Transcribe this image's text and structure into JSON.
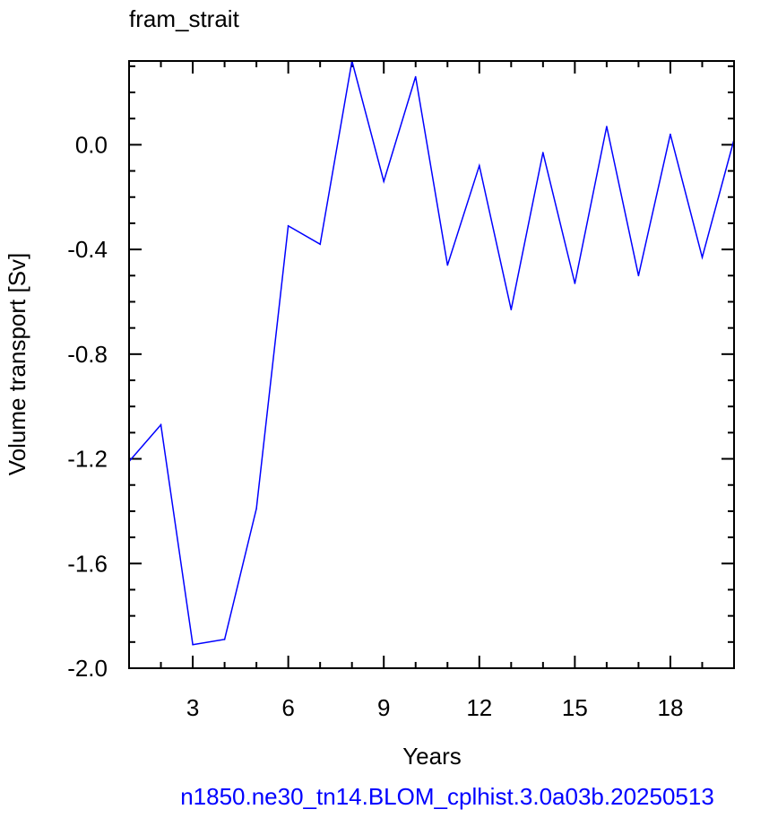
{
  "chart_data": {
    "type": "line",
    "title": "fram_strait",
    "xlabel": "Years",
    "ylabel": "Volume transport [Sv]",
    "caption": "n1850.ne30_tn14.BLOM_cplhist.3.0a03b.20250513",
    "xlim": [
      1,
      20
    ],
    "ylim": [
      -2.0,
      0.32
    ],
    "x_major_ticks": [
      3,
      6,
      9,
      12,
      15,
      18
    ],
    "x_tick_labels": [
      "3",
      "6",
      "9",
      "12",
      "15",
      "18"
    ],
    "x_minor_step": 1,
    "y_major_ticks": [
      -2.0,
      -1.6,
      -1.2,
      -0.8,
      -0.4,
      0.0
    ],
    "y_tick_labels": [
      "-2.0",
      "-1.6",
      "-1.2",
      "-0.8",
      "-0.4",
      "0.0"
    ],
    "y_minor_step": 0.1,
    "grid": false,
    "series": [
      {
        "color": "#0000ff",
        "x": [
          1,
          2,
          3,
          4,
          5,
          6,
          7,
          8,
          9,
          10,
          11,
          12,
          13,
          14,
          15,
          16,
          17,
          18,
          19,
          20
        ],
        "values": [
          -1.21,
          -1.07,
          -1.91,
          -1.89,
          -1.39,
          -0.31,
          -0.38,
          0.32,
          -0.14,
          0.26,
          -0.46,
          -0.08,
          -0.63,
          -0.03,
          -0.53,
          0.07,
          -0.5,
          0.04,
          -0.43,
          0.02
        ]
      }
    ]
  }
}
